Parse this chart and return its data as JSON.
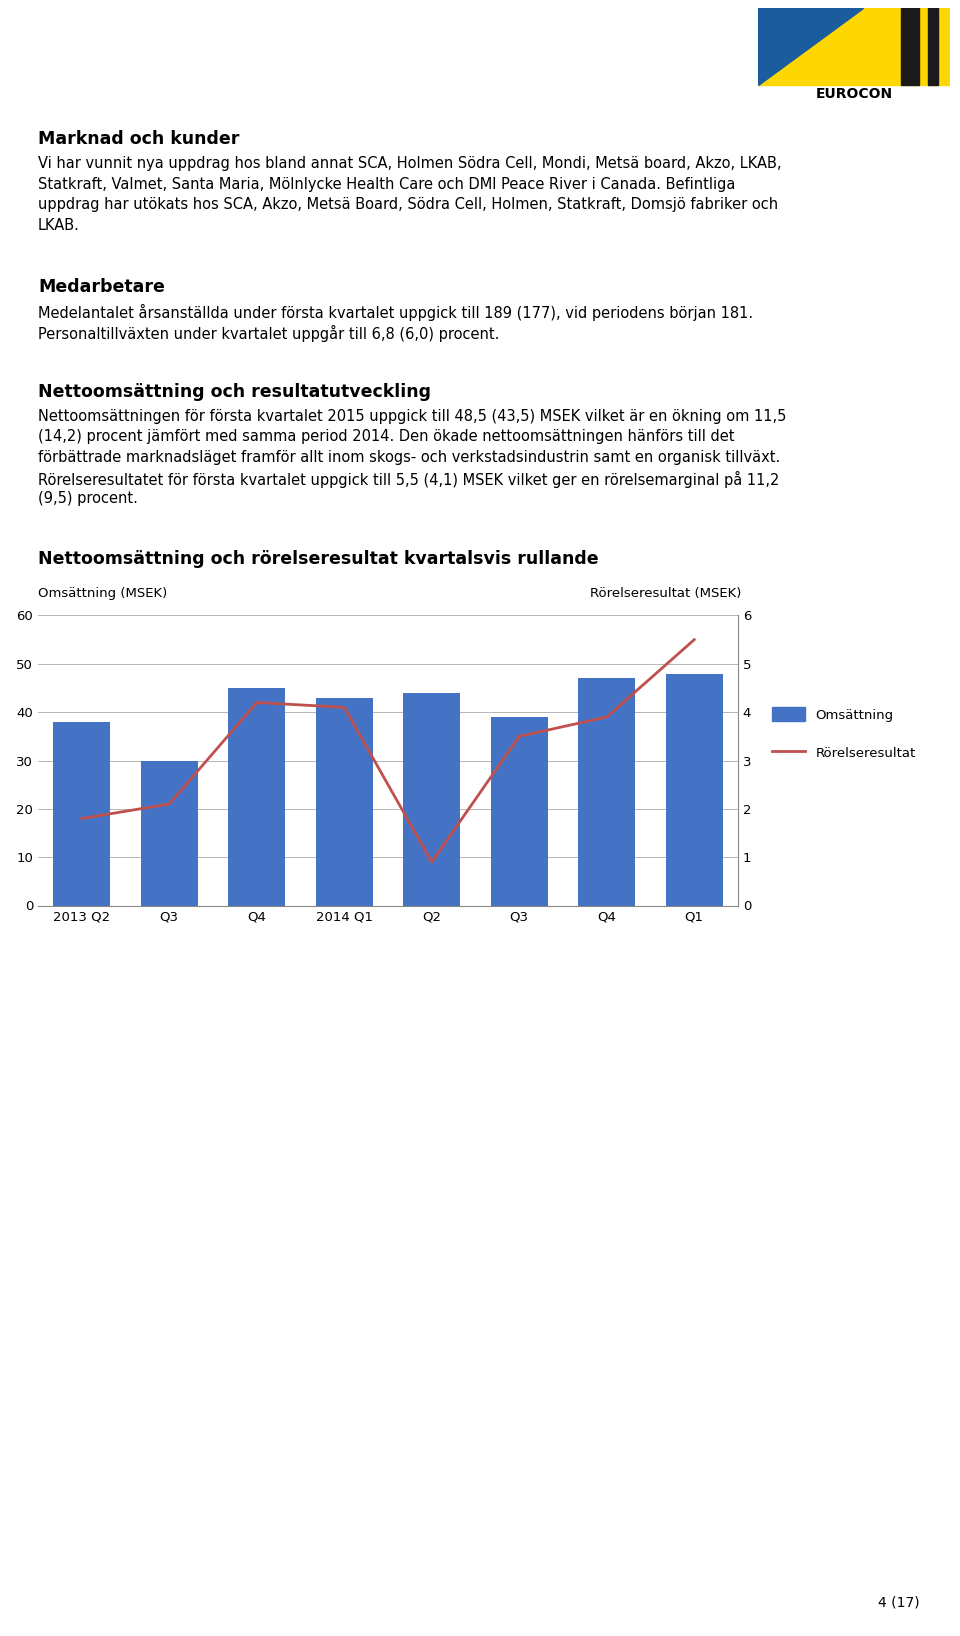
{
  "page_bg": "#ffffff",
  "text_color": "#000000",
  "section1_heading": "Marknad och kunder",
  "section1_body_lines": [
    "Vi har vunnit nya uppdrag hos bland annat SCA, Holmen Södra Cell, Mondi, Metsä board, Akzo, LKAB,",
    "Statkraft, Valmet, Santa Maria, Mölnlycke Health Care och DMI Peace River i Canada. Befintliga",
    "uppdrag har utökats hos SCA, Akzo, Metsä Board, Södra Cell, Holmen, Statkraft, Domsjö fabriker och",
    "LKAB."
  ],
  "section2_heading": "Medarbetare",
  "section2_body_lines": [
    "Medelantalet årsanställda under första kvartalet uppgick till 189 (177), vid periodens början 181.",
    "Personaltillväxten under kvartalet uppgår till 6,8 (6,0) procent."
  ],
  "section3_heading": "Nettoomsättning och resultatutveckling",
  "section3_body_lines": [
    "Nettoomsättningen för första kvartalet 2015 uppgick till 48,5 (43,5) MSEK vilket är en ökning om 11,5",
    "(14,2) procent jämfört med samma period 2014. Den ökade nettoomsättningen hänförs till det",
    "förbättrade marknadsläget framför allt inom skogs- och verkstadsindustrin samt en organisk tillväxt.",
    "Rörelseresultatet för första kvartalet uppgick till 5,5 (4,1) MSEK vilket ger en rörelsemarginal på 11,2",
    "(9,5) procent."
  ],
  "chart_heading": "Nettoomsättning och rörelseresultat kvartalsvis rullande",
  "chart_ylabel_left": "Omsättning (MSEK)",
  "chart_ylabel_right": "Rörelseresultat (MSEK)",
  "categories": [
    "2013 Q2",
    "Q3",
    "Q4",
    "2014 Q1",
    "Q2",
    "Q3",
    "Q4",
    "Q1"
  ],
  "bar_values": [
    38.0,
    30.0,
    45.0,
    43.0,
    44.0,
    39.0,
    47.0,
    48.0
  ],
  "line_values": [
    1.8,
    2.1,
    4.2,
    4.1,
    0.9,
    3.5,
    3.9,
    5.5
  ],
  "bar_color": "#4472C4",
  "line_color": "#C0504D",
  "ylim_left": [
    0,
    60
  ],
  "ylim_right": [
    0,
    6
  ],
  "yticks_left": [
    0,
    10,
    20,
    30,
    40,
    50,
    60
  ],
  "yticks_right": [
    0,
    1,
    2,
    3,
    4,
    5,
    6
  ],
  "legend_omsattning": "Omsättning",
  "legend_rorelseresultat": "Rörelseresultat",
  "footer_text": "4 (17)",
  "heading_fontsize": 12.5,
  "body_fontsize": 10.5,
  "chart_heading_fontsize": 12.5,
  "logo_yellow": "#FFD700",
  "logo_blue": "#1A5C9E",
  "logo_dark": "#1a1a1a"
}
